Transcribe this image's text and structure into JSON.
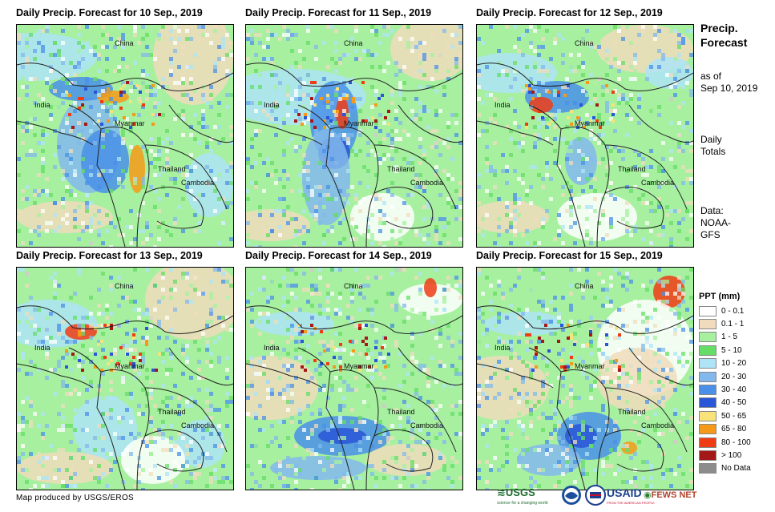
{
  "panels": [
    {
      "title": "Daily Precip. Forecast for 10 Sep., 2019"
    },
    {
      "title": "Daily Precip. Forecast for 11 Sep., 2019"
    },
    {
      "title": "Daily Precip. Forecast for 12 Sep., 2019"
    },
    {
      "title": "Daily Precip. Forecast for 13 Sep., 2019"
    },
    {
      "title": "Daily Precip. Forecast for 14 Sep., 2019"
    },
    {
      "title": "Daily Precip. Forecast for 15 Sep., 2019"
    }
  ],
  "map_labels": {
    "china": "China",
    "india": "India",
    "myanmar": "Myanmar",
    "thailand": "Thailand",
    "cambodia": "Cambodia"
  },
  "sidebar": {
    "title_line1": "Precip.",
    "title_line2": "Forecast",
    "asof_line1": "as of",
    "asof_line2": "Sep 10, 2019",
    "daily_line1": "Daily",
    "daily_line2": "Totals",
    "data_line1": "Data:",
    "data_line2": "NOAA-",
    "data_line3": "GFS"
  },
  "legend": {
    "title": "PPT (mm)",
    "items": [
      {
        "label": "0 - 0.1",
        "color": "#ffffff"
      },
      {
        "label": "0.1 - 1",
        "color": "#f0dcbc"
      },
      {
        "label": "1 - 5",
        "color": "#a6f0a0"
      },
      {
        "label": "5 - 10",
        "color": "#66dd66"
      },
      {
        "label": "10 - 20",
        "color": "#aee4f6"
      },
      {
        "label": "20 - 30",
        "color": "#82b8ec"
      },
      {
        "label": "30 - 40",
        "color": "#4a90e8"
      },
      {
        "label": "40 - 50",
        "color": "#2a56d8"
      },
      {
        "label": "50 - 65",
        "color": "#f8e27a"
      },
      {
        "label": "65 - 80",
        "color": "#f49a18"
      },
      {
        "label": "80 - 100",
        "color": "#f03c14"
      },
      {
        "label": "> 100",
        "color": "#a41818"
      },
      {
        "label": "No Data",
        "color": "#8c8c8c"
      }
    ]
  },
  "credit": "Map produced by USGS/EROS",
  "logos": {
    "usgs": "USGS",
    "usgs_tagline": "science for a changing world",
    "usaid": "USAID",
    "usaid_tagline": "FROM THE AMERICAN PEOPLE",
    "fews": "FEWS NET"
  }
}
